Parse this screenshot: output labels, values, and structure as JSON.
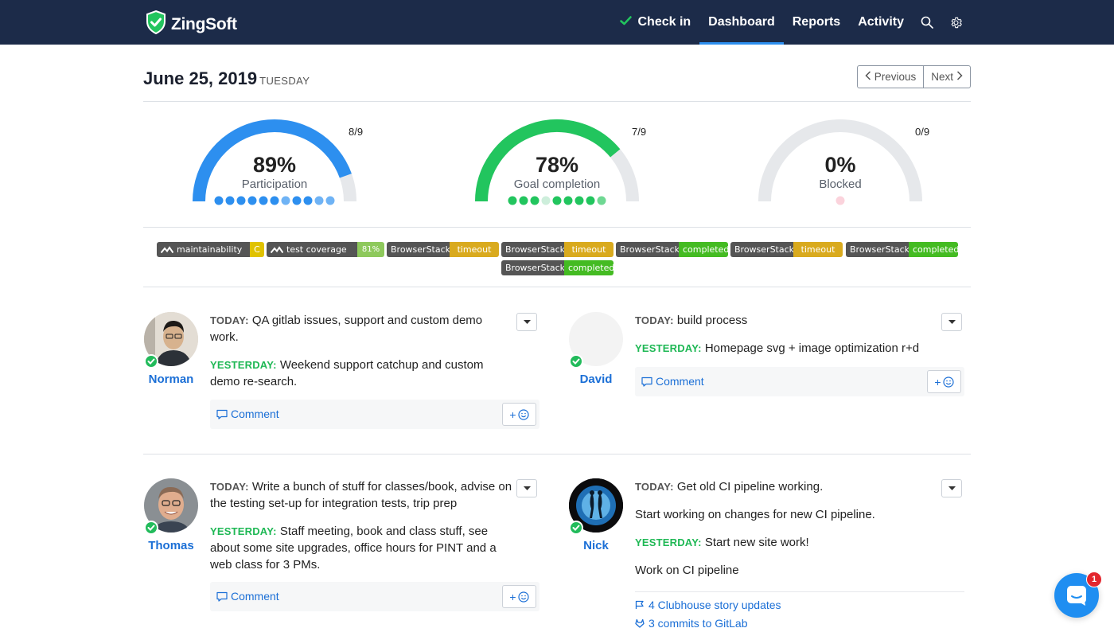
{
  "brand": {
    "name": "ZingSoft"
  },
  "nav": {
    "checkin": "Check in",
    "dashboard": "Dashboard",
    "reports": "Reports",
    "activity": "Activity",
    "search_icon": "search-icon",
    "settings_icon": "gear-icon"
  },
  "date": {
    "title": "June 25, 2019",
    "day": "TUESDAY"
  },
  "pager": {
    "previous": "Previous",
    "next": "Next"
  },
  "gauges": [
    {
      "percent": "89%",
      "label": "Participation",
      "count": "8/9",
      "fraction": 0.89,
      "color": "#2d8fef",
      "dots": [
        "#2d8fef",
        "#2d8fef",
        "#2d8fef",
        "#2d8fef",
        "#2d8fef",
        "#2d8fef",
        "#6fb3f5",
        "#2d8fef",
        "#2d8fef",
        "#6fb3f5",
        "#6fb3f5"
      ]
    },
    {
      "percent": "78%",
      "label": "Goal completion",
      "count": "7/9",
      "fraction": 0.78,
      "color": "#22c55e",
      "dots": [
        "#22c55e",
        "#22c55e",
        "#22c55e",
        "#cdeedb",
        "#22c55e",
        "#22c55e",
        "#22c55e",
        "#22c55e",
        "#6fd893"
      ]
    },
    {
      "percent": "0%",
      "label": "Blocked",
      "count": "0/9",
      "fraction": 0.0,
      "color": "#e5173f",
      "dots": [
        "#fbd3dc"
      ]
    }
  ],
  "badges": [
    {
      "left": "maintainability",
      "right": "C",
      "color": "#e0c200",
      "icon": true
    },
    {
      "left": "test coverage",
      "right": "81%",
      "color": "#8ec95c",
      "icon": true
    },
    {
      "left": "BrowserStack",
      "right": "timeout",
      "color": "#d9aa1e"
    },
    {
      "left": "BrowserStack",
      "right": "timeout",
      "color": "#d9aa1e"
    },
    {
      "left": "BrowserStack",
      "right": "completed",
      "color": "#44bb22"
    },
    {
      "left": "BrowserStack",
      "right": "timeout",
      "color": "#d9aa1e"
    },
    {
      "left": "BrowserStack",
      "right": "completed",
      "color": "#44bb22"
    },
    {
      "left": "BrowserStack",
      "right": "completed",
      "color": "#44bb22"
    }
  ],
  "labels": {
    "today": "TODAY:",
    "yesterday": "YESTERDAY:",
    "comment": "Comment",
    "react": "+"
  },
  "standups": [
    {
      "name": "Norman",
      "today": "QA gitlab issues, support and custom demo work.",
      "yesterday": "Weekend support catchup and custom demo re-search."
    },
    {
      "name": "David",
      "today": "build process",
      "yesterday": "Homepage svg + image optimization r+d"
    },
    {
      "name": "Thomas",
      "today": "Write a bunch of stuff for classes/book, advise on the testing set-up for integration tests, trip prep",
      "yesterday": "Staff meeting, book and class stuff, see about some site upgrades, office hours for PINT and a web class for 3 PMs."
    },
    {
      "name": "Nick",
      "today": "Get old CI pipeline working.",
      "today_extra": "Start working on changes for new CI pipeline.",
      "yesterday": "Start new site work!",
      "yesterday_extra": "Work on CI pipeline",
      "activity": [
        "4 Clubhouse story updates",
        "3 commits to GitLab"
      ]
    }
  ],
  "chat": {
    "count": "1"
  }
}
